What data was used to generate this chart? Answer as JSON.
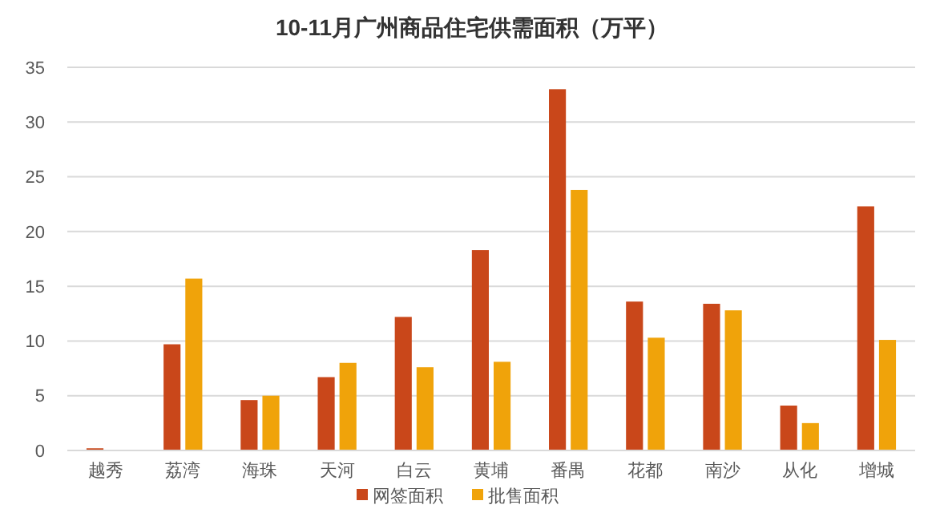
{
  "chart_data": {
    "type": "bar",
    "title": "10-11月广州商品住宅供需面积（万平）",
    "categories": [
      "越秀",
      "荔湾",
      "海珠",
      "天河",
      "白云",
      "黄埔",
      "番禺",
      "花都",
      "南沙",
      "从化",
      "增城"
    ],
    "series": [
      {
        "name": "网签面积",
        "color": "#c9471a",
        "values": [
          0.2,
          9.7,
          4.6,
          6.7,
          12.2,
          18.3,
          33.0,
          13.6,
          13.4,
          4.1,
          22.3
        ]
      },
      {
        "name": "批售面积",
        "color": "#f0a30a",
        "values": [
          null,
          15.7,
          5.0,
          8.0,
          7.6,
          8.1,
          23.8,
          10.3,
          12.8,
          2.5,
          10.1
        ]
      }
    ],
    "ylim": [
      0,
      35
    ],
    "yticks": [
      0,
      5,
      10,
      15,
      20,
      25,
      30,
      35
    ],
    "grid": "y",
    "legend": "bottom"
  }
}
